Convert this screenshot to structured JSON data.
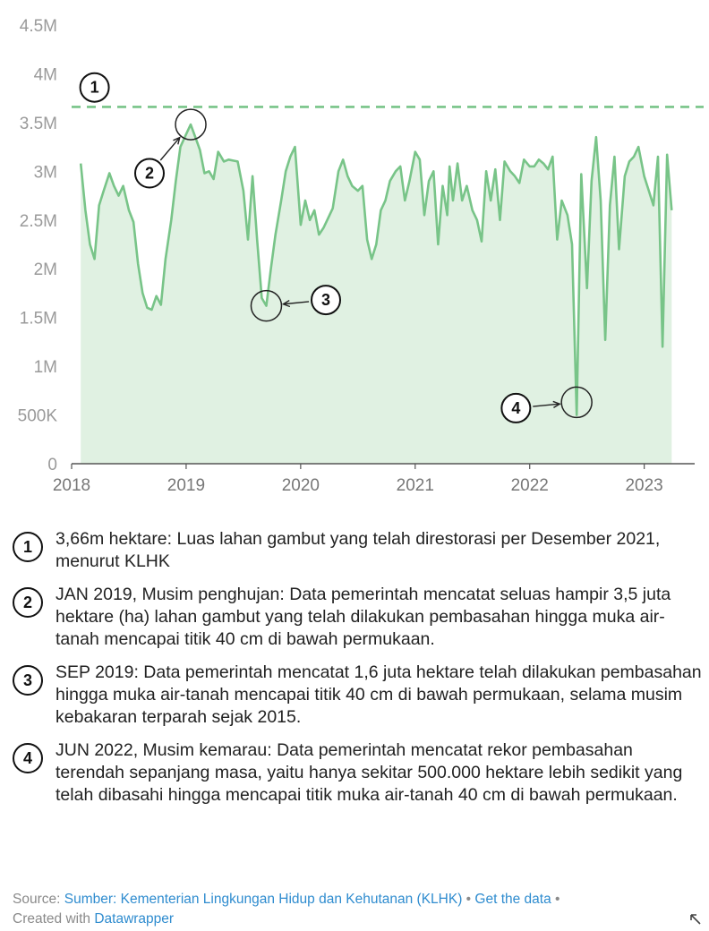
{
  "chart_data": {
    "type": "area",
    "y_ticks": [
      "0",
      "500K",
      "1M",
      "1.5M",
      "2M",
      "2.5M",
      "3M",
      "3.5M",
      "4M",
      "4.5M"
    ],
    "y_tick_values": [
      0,
      500000,
      1000000,
      1500000,
      2000000,
      2500000,
      3000000,
      3500000,
      4000000,
      4500000
    ],
    "ylim": [
      0,
      4500000
    ],
    "x_ticks": [
      "2018",
      "2019",
      "2020",
      "2021",
      "2022",
      "2023"
    ],
    "x_tick_values": [
      2018,
      2019,
      2020,
      2021,
      2022,
      2023
    ],
    "xlim": [
      2018,
      2023.55
    ],
    "reference_line": {
      "value": 3660000,
      "style": "dashed",
      "marker": "1"
    },
    "colors": {
      "line": "#78c488",
      "area": "#e0f1e2",
      "reference": "#78c488",
      "axis": "#555555"
    },
    "series": [
      {
        "values": [
          [
            2018.08,
            3080000
          ],
          [
            2018.12,
            2600000
          ],
          [
            2018.16,
            2250000
          ],
          [
            2018.2,
            2100000
          ],
          [
            2018.24,
            2650000
          ],
          [
            2018.28,
            2800000
          ],
          [
            2018.33,
            2980000
          ],
          [
            2018.37,
            2850000
          ],
          [
            2018.41,
            2750000
          ],
          [
            2018.45,
            2850000
          ],
          [
            2018.5,
            2600000
          ],
          [
            2018.54,
            2480000
          ],
          [
            2018.58,
            2050000
          ],
          [
            2018.62,
            1750000
          ],
          [
            2018.66,
            1600000
          ],
          [
            2018.7,
            1580000
          ],
          [
            2018.74,
            1720000
          ],
          [
            2018.78,
            1630000
          ],
          [
            2018.82,
            2100000
          ],
          [
            2018.87,
            2500000
          ],
          [
            2018.91,
            2900000
          ],
          [
            2018.95,
            3250000
          ],
          [
            2019.0,
            3380000
          ],
          [
            2019.04,
            3480000
          ],
          [
            2019.08,
            3350000
          ],
          [
            2019.12,
            3220000
          ],
          [
            2019.16,
            2980000
          ],
          [
            2019.2,
            3000000
          ],
          [
            2019.24,
            2920000
          ],
          [
            2019.28,
            3200000
          ],
          [
            2019.33,
            3100000
          ],
          [
            2019.37,
            3120000
          ],
          [
            2019.41,
            3110000
          ],
          [
            2019.45,
            3100000
          ],
          [
            2019.5,
            2800000
          ],
          [
            2019.54,
            2300000
          ],
          [
            2019.58,
            2950000
          ],
          [
            2019.62,
            2300000
          ],
          [
            2019.66,
            1700000
          ],
          [
            2019.7,
            1620000
          ],
          [
            2019.74,
            2000000
          ],
          [
            2019.78,
            2350000
          ],
          [
            2019.83,
            2700000
          ],
          [
            2019.87,
            3000000
          ],
          [
            2019.91,
            3150000
          ],
          [
            2019.95,
            3250000
          ],
          [
            2020.0,
            2450000
          ],
          [
            2020.04,
            2700000
          ],
          [
            2020.08,
            2500000
          ],
          [
            2020.12,
            2600000
          ],
          [
            2020.16,
            2350000
          ],
          [
            2020.2,
            2420000
          ],
          [
            2020.24,
            2520000
          ],
          [
            2020.28,
            2620000
          ],
          [
            2020.33,
            3000000
          ],
          [
            2020.37,
            3120000
          ],
          [
            2020.41,
            2950000
          ],
          [
            2020.45,
            2850000
          ],
          [
            2020.5,
            2800000
          ],
          [
            2020.54,
            2850000
          ],
          [
            2020.58,
            2300000
          ],
          [
            2020.62,
            2100000
          ],
          [
            2020.66,
            2250000
          ],
          [
            2020.7,
            2600000
          ],
          [
            2020.74,
            2700000
          ],
          [
            2020.78,
            2900000
          ],
          [
            2020.83,
            3000000
          ],
          [
            2020.87,
            3050000
          ],
          [
            2020.91,
            2700000
          ],
          [
            2020.95,
            2900000
          ],
          [
            2021.0,
            3200000
          ],
          [
            2021.04,
            3120000
          ],
          [
            2021.08,
            2550000
          ],
          [
            2021.12,
            2900000
          ],
          [
            2021.16,
            3000000
          ],
          [
            2021.2,
            2250000
          ],
          [
            2021.24,
            2850000
          ],
          [
            2021.28,
            2550000
          ],
          [
            2021.3,
            3050000
          ],
          [
            2021.33,
            2700000
          ],
          [
            2021.37,
            3080000
          ],
          [
            2021.41,
            2700000
          ],
          [
            2021.45,
            2850000
          ],
          [
            2021.5,
            2600000
          ],
          [
            2021.54,
            2500000
          ],
          [
            2021.58,
            2280000
          ],
          [
            2021.62,
            3000000
          ],
          [
            2021.66,
            2700000
          ],
          [
            2021.7,
            3020000
          ],
          [
            2021.74,
            2500000
          ],
          [
            2021.78,
            3100000
          ],
          [
            2021.83,
            3000000
          ],
          [
            2021.87,
            2950000
          ],
          [
            2021.91,
            2880000
          ],
          [
            2021.95,
            3120000
          ],
          [
            2022.0,
            3050000
          ],
          [
            2022.04,
            3050000
          ],
          [
            2022.08,
            3120000
          ],
          [
            2022.12,
            3080000
          ],
          [
            2022.16,
            3020000
          ],
          [
            2022.2,
            3150000
          ],
          [
            2022.24,
            2300000
          ],
          [
            2022.28,
            2700000
          ],
          [
            2022.33,
            2550000
          ],
          [
            2022.37,
            2250000
          ],
          [
            2022.41,
            500000
          ],
          [
            2022.45,
            2970000
          ],
          [
            2022.5,
            1800000
          ],
          [
            2022.54,
            2900000
          ],
          [
            2022.58,
            3350000
          ],
          [
            2022.62,
            2700000
          ],
          [
            2022.66,
            1270000
          ],
          [
            2022.7,
            2650000
          ],
          [
            2022.74,
            3150000
          ],
          [
            2022.78,
            2200000
          ],
          [
            2022.83,
            2950000
          ],
          [
            2022.87,
            3100000
          ],
          [
            2022.91,
            3150000
          ],
          [
            2022.95,
            3250000
          ],
          [
            2023.0,
            2950000
          ],
          [
            2023.04,
            2800000
          ],
          [
            2023.08,
            2650000
          ],
          [
            2023.12,
            3150000
          ],
          [
            2023.16,
            1200000
          ],
          [
            2023.2,
            3170000
          ],
          [
            2023.24,
            2600000
          ]
        ]
      }
    ],
    "annotations": [
      {
        "number": "1",
        "x": 2018.2,
        "y": 3860000,
        "target_x": null,
        "target_y": null
      },
      {
        "number": "2",
        "x": 2018.68,
        "y": 2980000,
        "target_x": 2019.04,
        "target_y": 3480000
      },
      {
        "number": "3",
        "x": 2020.22,
        "y": 1680000,
        "target_x": 2019.7,
        "target_y": 1620000
      },
      {
        "number": "4",
        "x": 2021.88,
        "y": 570000,
        "target_x": 2022.41,
        "target_y": 630000
      }
    ]
  },
  "notes": [
    {
      "number": "1",
      "text": "3,66m hektare: Luas lahan gambut yang telah direstorasi per Desember 2021, menurut KLHK"
    },
    {
      "number": "2",
      "text": "JAN 2019, Musim penghujan: Data pemerintah mencatat seluas hampir 3,5 juta hektare (ha) lahan gambut yang telah dilakukan pembasahan hingga muka air-tanah mencapai titik 40 cm di bawah permukaan."
    },
    {
      "number": "3",
      "text": "SEP 2019: Data pemerintah mencatat 1,6 juta hektare telah dilakukan pembasahan hingga muka air-tanah mencapai titik 40 cm di bawah permukaan, selama musim kebakaran terparah sejak 2015."
    },
    {
      "number": "4",
      "text": "JUN 2022, Musim kemarau: Data pemerintah mencatat rekor pembasahan terendah sepanjang masa, yaitu hanya sekitar 500.000 hektare lebih sedikit yang telah dibasahi hingga mencapai titik muka air-tanah 40 cm di bawah permukaan."
    }
  ],
  "footer": {
    "source_prefix": "Source: ",
    "source_link": "Sumber: Kementerian Lingkungan Hidup dan Kehutanan (KLHK)",
    "separator1": " • ",
    "get_data": "Get the data",
    "separator2": " • ",
    "created_prefix": "Created with ",
    "created_link": "Datawrapper"
  }
}
